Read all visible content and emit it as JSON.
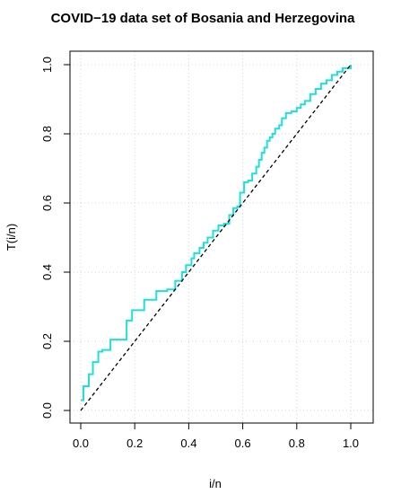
{
  "chart_data": {
    "type": "line",
    "title": "COVID−19 data set of Bosania and Herzegovina",
    "xlabel": "i/n",
    "ylabel": "T(i/n)",
    "xlim": [
      0,
      1
    ],
    "ylim": [
      0,
      1
    ],
    "x_ticks": [
      "0.0",
      "0.2",
      "0.4",
      "0.6",
      "0.8",
      "1.0"
    ],
    "y_ticks": [
      "0.0",
      "0.2",
      "0.4",
      "0.6",
      "0.8",
      "1.0"
    ],
    "grid": true,
    "series": [
      {
        "style": "step",
        "color": "#1fe0d8",
        "x": [
          0.0,
          0.01,
          0.03,
          0.045,
          0.065,
          0.08,
          0.11,
          0.16,
          0.17,
          0.19,
          0.235,
          0.28,
          0.3,
          0.32,
          0.33,
          0.35,
          0.375,
          0.39,
          0.41,
          0.42,
          0.44,
          0.455,
          0.47,
          0.49,
          0.51,
          0.53,
          0.55,
          0.565,
          0.58,
          0.59,
          0.605,
          0.62,
          0.635,
          0.65,
          0.66,
          0.67,
          0.68,
          0.69,
          0.7,
          0.71,
          0.72,
          0.735,
          0.745,
          0.76,
          0.78,
          0.8,
          0.815,
          0.83,
          0.85,
          0.87,
          0.89,
          0.91,
          0.93,
          0.95,
          0.97,
          1.0
        ],
        "y": [
          0.03,
          0.07,
          0.105,
          0.14,
          0.17,
          0.175,
          0.205,
          0.205,
          0.26,
          0.29,
          0.32,
          0.345,
          0.345,
          0.35,
          0.35,
          0.375,
          0.4,
          0.42,
          0.44,
          0.455,
          0.47,
          0.485,
          0.5,
          0.52,
          0.535,
          0.54,
          0.565,
          0.585,
          0.59,
          0.63,
          0.66,
          0.665,
          0.685,
          0.705,
          0.725,
          0.745,
          0.76,
          0.78,
          0.79,
          0.8,
          0.815,
          0.825,
          0.845,
          0.86,
          0.865,
          0.875,
          0.885,
          0.895,
          0.915,
          0.93,
          0.945,
          0.955,
          0.97,
          0.98,
          0.99,
          1.0
        ]
      },
      {
        "style": "dashed",
        "color": "#000000",
        "x": [
          0,
          1
        ],
        "y": [
          0,
          1
        ]
      }
    ]
  }
}
